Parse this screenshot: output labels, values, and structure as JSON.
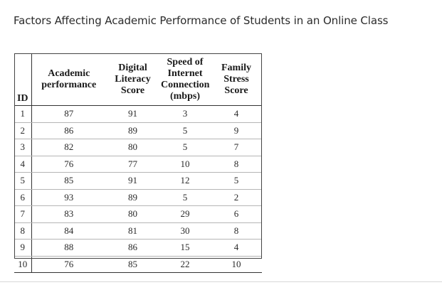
{
  "title": "Factors Affecting Academic Performance of Students in an Online Class",
  "table": {
    "headers": {
      "id": "ID",
      "academic": [
        "Academic",
        "performance"
      ],
      "digital": [
        "Digital",
        "Literacy",
        "Score"
      ],
      "speed": [
        "Speed of",
        "Internet",
        "Connection",
        "(mbps)"
      ],
      "family": [
        "Family",
        "Stress",
        "Score"
      ]
    },
    "rows": [
      [
        "1",
        "87",
        "91",
        "3",
        "4"
      ],
      [
        "2",
        "86",
        "89",
        "5",
        "9"
      ],
      [
        "3",
        "82",
        "80",
        "5",
        "7"
      ],
      [
        "4",
        "76",
        "77",
        "10",
        "8"
      ],
      [
        "5",
        "85",
        "91",
        "12",
        "5"
      ],
      [
        "6",
        "93",
        "89",
        "5",
        "2"
      ],
      [
        "7",
        "83",
        "80",
        "29",
        "6"
      ],
      [
        "8",
        "84",
        "81",
        "30",
        "8"
      ],
      [
        "9",
        "88",
        "86",
        "15",
        "4"
      ],
      [
        "10",
        "76",
        "85",
        "22",
        "10"
      ]
    ]
  }
}
